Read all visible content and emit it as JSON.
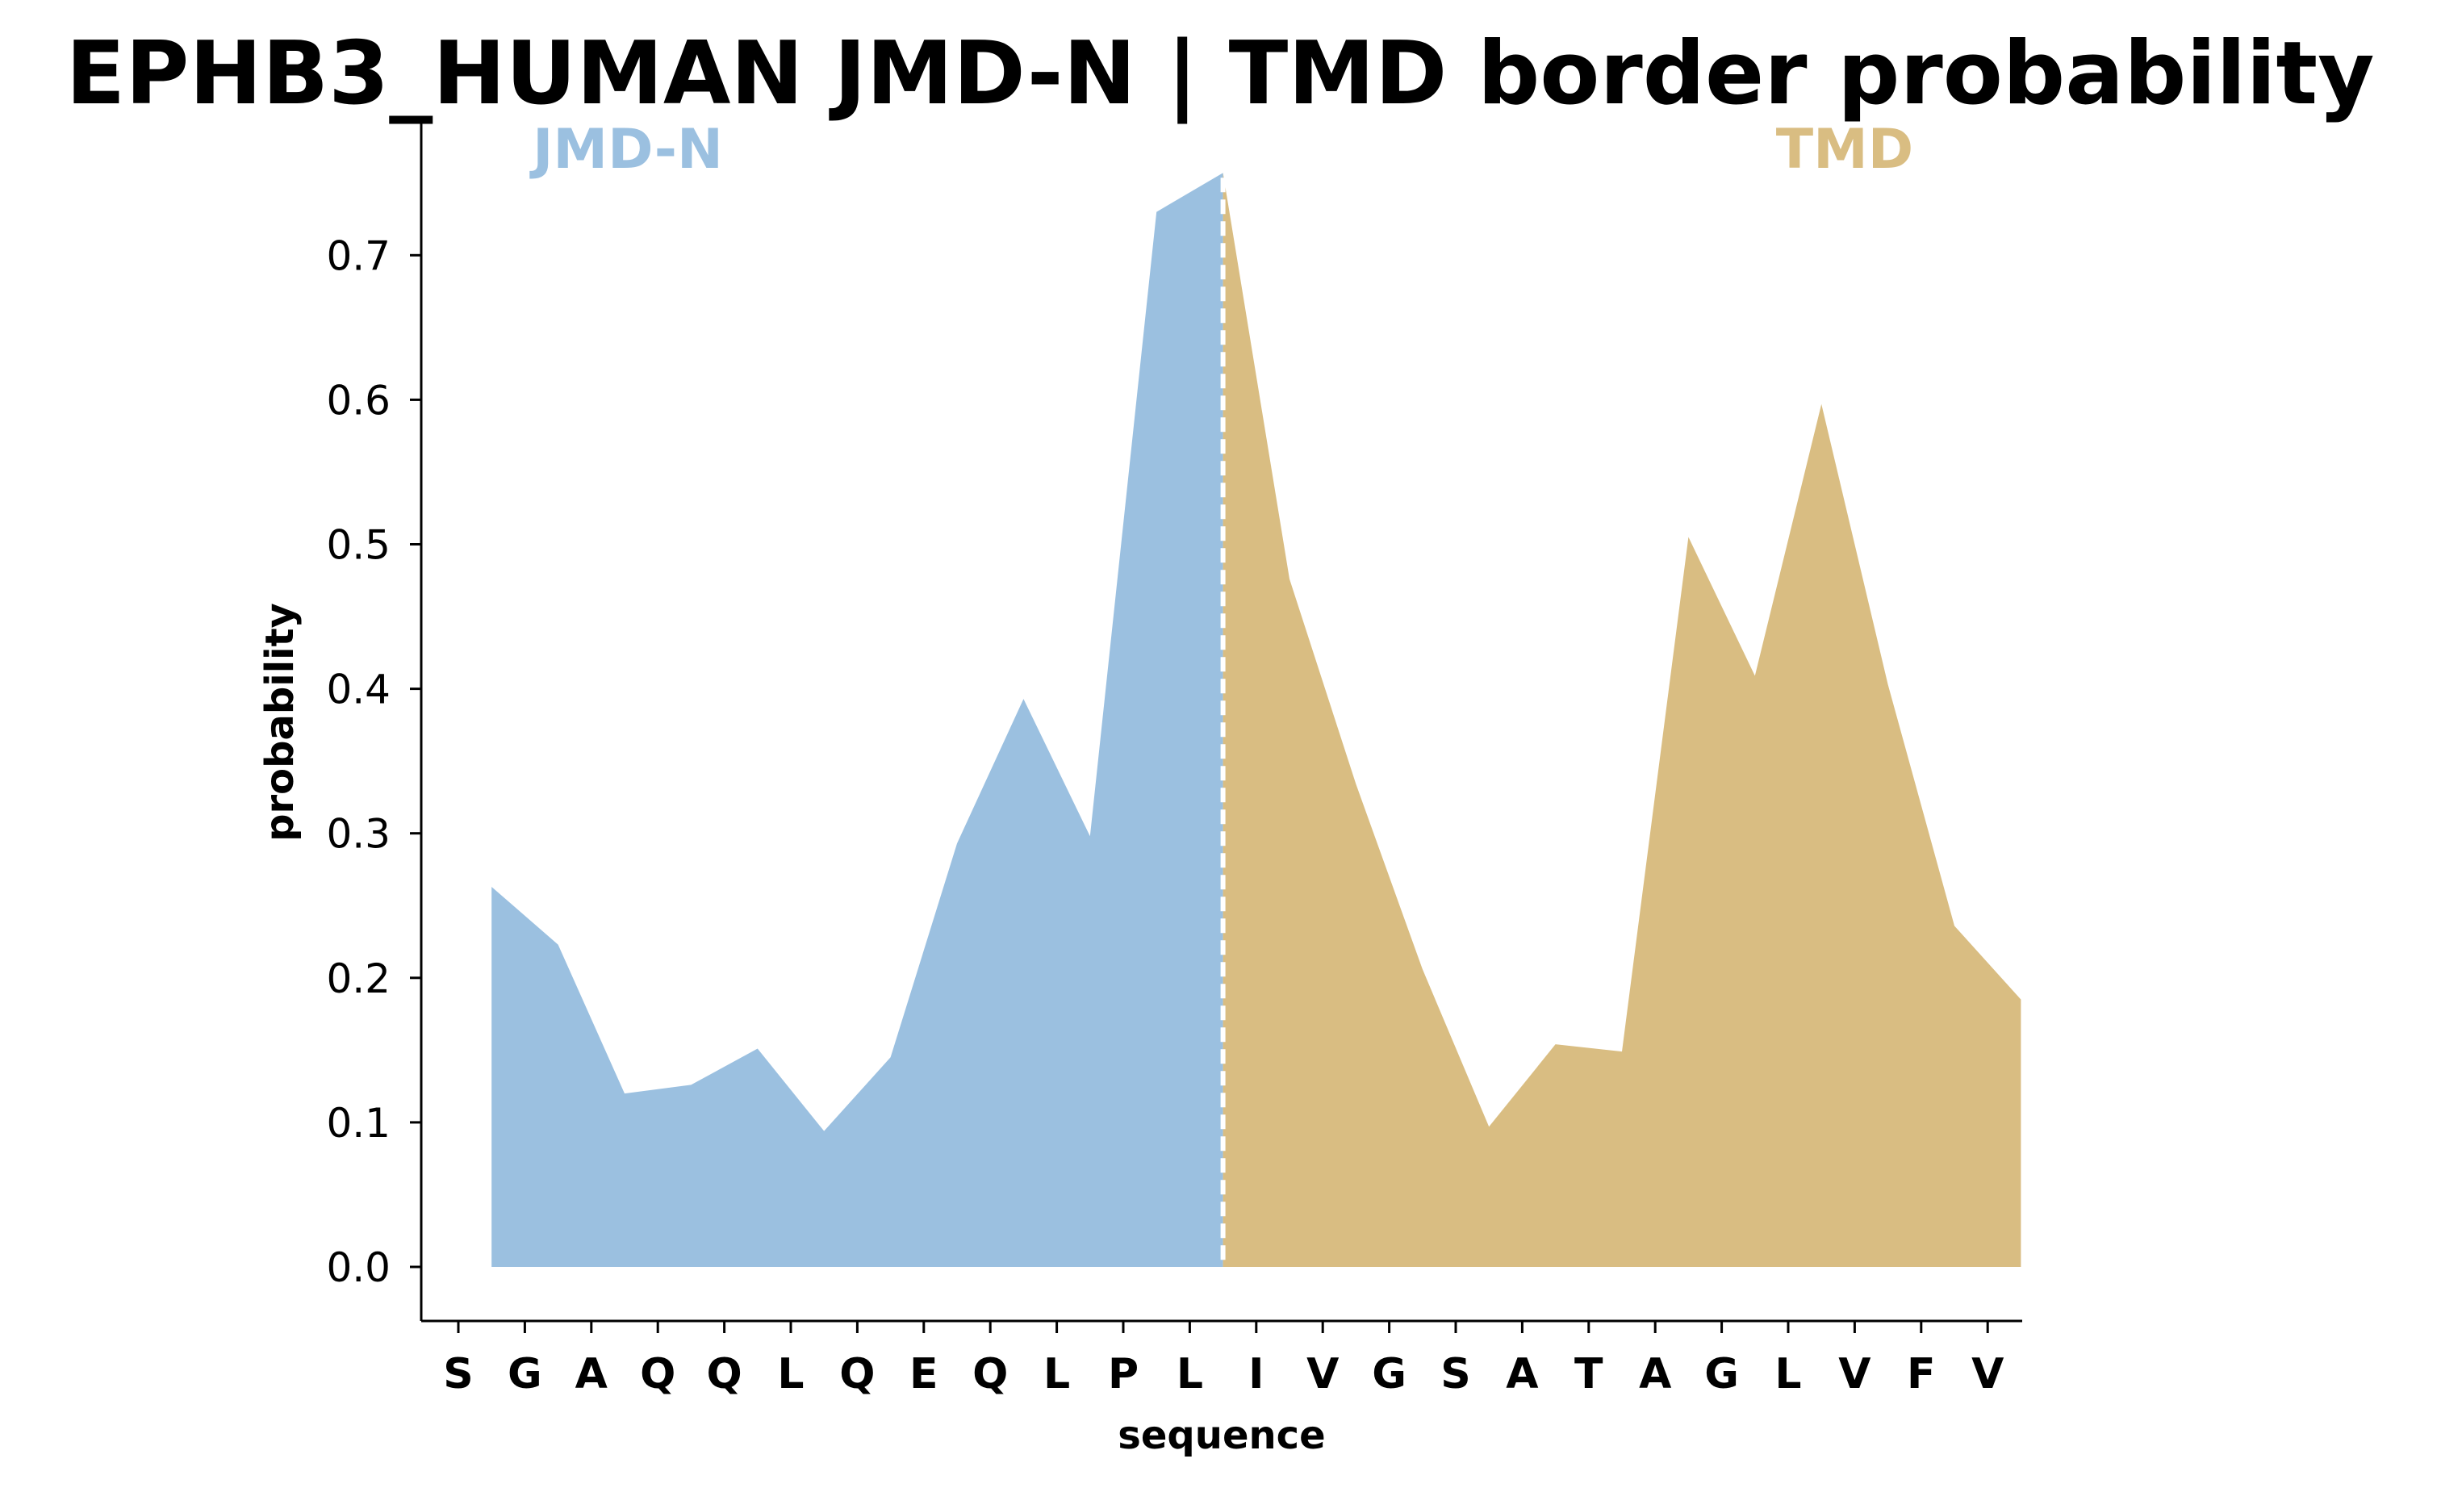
{
  "chart_data": {
    "type": "area",
    "title": "EPHB3_HUMAN JMD-N | TMD border probability",
    "xlabel": "sequence",
    "ylabel": "probability",
    "categories": [
      "S",
      "G",
      "A",
      "Q",
      "Q",
      "L",
      "Q",
      "E",
      "Q",
      "L",
      "P",
      "L",
      "I",
      "V",
      "G",
      "S",
      "A",
      "T",
      "A",
      "G",
      "L",
      "V",
      "F",
      "V"
    ],
    "ylim": [
      -0.036,
      0.79
    ],
    "yticks": [
      "0.0",
      "0.1",
      "0.2",
      "0.3",
      "0.4",
      "0.5",
      "0.6",
      "0.7"
    ],
    "grid": false,
    "regions": [
      {
        "name": "JMD-N",
        "color": "#9bc0e0",
        "x": [
          0.5,
          1.5,
          2.5,
          3.5,
          4.5,
          5.5,
          6.5,
          7.5,
          8.5,
          9.5,
          10.5,
          11.5
        ],
        "y": [
          0.263,
          0.223,
          0.12,
          0.126,
          0.151,
          0.094,
          0.145,
          0.293,
          0.393,
          0.298,
          0.73,
          0.757
        ]
      },
      {
        "name": "TMD",
        "color": "#d9bd82",
        "x": [
          11.5,
          12.5,
          13.5,
          14.5,
          15.5,
          16.5,
          17.5,
          18.5,
          19.5,
          20.5,
          21.5,
          22.5,
          23.5
        ],
        "y": [
          0.757,
          0.476,
          0.334,
          0.206,
          0.097,
          0.154,
          0.149,
          0.505,
          0.409,
          0.597,
          0.403,
          0.236,
          0.185
        ]
      }
    ],
    "border_line": {
      "x": 11.5,
      "style": "dashed",
      "color": "#ffffff"
    }
  }
}
